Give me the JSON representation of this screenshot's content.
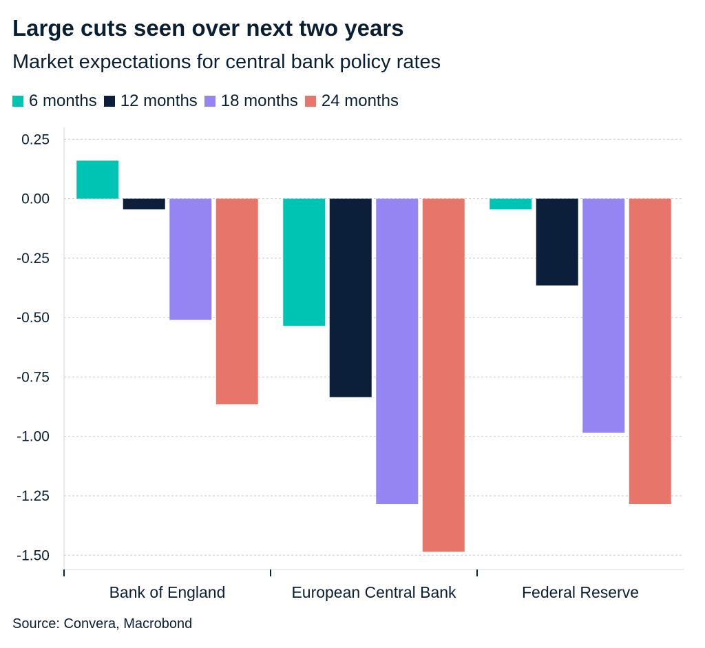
{
  "title": "Large cuts seen over next two years",
  "subtitle": "Market expectations for central bank policy rates",
  "source": "Source: Convera, Macrobond",
  "chart_data": {
    "type": "bar",
    "title": "Large cuts seen over next two years",
    "subtitle": "Market expectations for central bank policy rates",
    "categories": [
      "Bank of England",
      "European Central Bank",
      "Federal Reserve"
    ],
    "series": [
      {
        "name": "6 months",
        "color": "#00c4b3",
        "values": [
          0.16,
          -0.535,
          -0.045
        ]
      },
      {
        "name": "12 months",
        "color": "#0b1f3a",
        "values": [
          -0.045,
          -0.835,
          -0.365
        ]
      },
      {
        "name": "18 months",
        "color": "#9585f2",
        "values": [
          -0.51,
          -1.285,
          -0.985
        ]
      },
      {
        "name": "24 months",
        "color": "#e8756a",
        "values": [
          -0.865,
          -1.485,
          -1.285
        ]
      }
    ],
    "ylim": [
      -1.56,
      0.3
    ],
    "yticks": [
      0.25,
      0.0,
      -0.25,
      -0.5,
      -0.75,
      -1.0,
      -1.25,
      -1.5
    ],
    "ytick_labels": [
      "0.25",
      "0.00",
      "-0.25",
      "-0.50",
      "-0.75",
      "-1.00",
      "-1.25",
      "-1.50"
    ],
    "grid": true,
    "legend_position": "top-left"
  }
}
